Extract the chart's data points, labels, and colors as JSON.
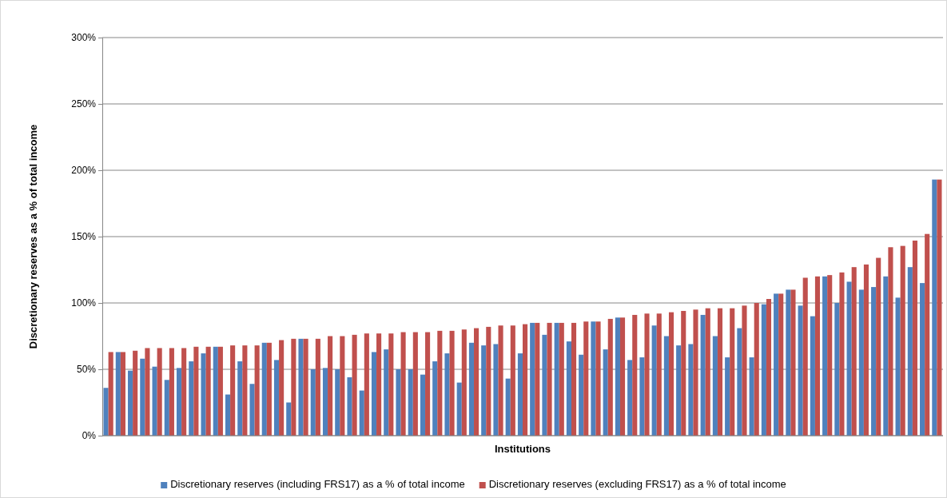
{
  "chart_data": {
    "type": "bar",
    "xlabel": "Institutions",
    "ylabel": "Discretionary reserves as a % of total income",
    "categories": [
      null,
      null,
      null,
      null,
      null,
      null,
      null,
      null,
      null,
      null,
      null,
      null,
      null,
      null,
      null,
      null,
      null,
      null,
      null,
      null,
      null,
      null,
      null,
      null,
      null,
      null,
      null,
      null,
      null,
      null,
      null,
      null,
      null,
      null,
      null,
      null,
      null,
      null,
      null,
      null,
      null,
      null,
      null,
      null,
      null,
      null,
      null,
      null,
      null,
      null,
      null,
      null,
      null,
      null,
      null,
      null,
      null,
      null,
      null,
      null,
      null,
      null,
      null,
      null,
      null,
      null,
      null,
      null,
      null
    ],
    "series": [
      {
        "name": "Discretionary reserves (including FRS17) as a % of total income",
        "color": "#4f81bd",
        "values": [
          36,
          63,
          49,
          58,
          52,
          42,
          51,
          56,
          62,
          67,
          31,
          56,
          39,
          70,
          57,
          25,
          73,
          50,
          51,
          50,
          44,
          34,
          63,
          65,
          50,
          50,
          46,
          56,
          62,
          40,
          70,
          68,
          69,
          43,
          62,
          85,
          76,
          85,
          71,
          61,
          86,
          65,
          89,
          57,
          59,
          83,
          75,
          68,
          69,
          91,
          75,
          59,
          81,
          59,
          99,
          107,
          110,
          98,
          90,
          120,
          100,
          116,
          110,
          112,
          120,
          104,
          127,
          115,
          193
        ]
      },
      {
        "name": "Discretionary reserves (excluding FRS17) as a % of total income",
        "color": "#c0504d",
        "values": [
          63,
          63,
          64,
          66,
          66,
          66,
          66,
          67,
          67,
          67,
          68,
          68,
          68,
          70,
          72,
          73,
          73,
          73,
          75,
          75,
          76,
          77,
          77,
          77,
          78,
          78,
          78,
          79,
          79,
          80,
          81,
          82,
          83,
          83,
          84,
          85,
          85,
          85,
          85,
          86,
          86,
          88,
          89,
          91,
          92,
          92,
          93,
          94,
          95,
          96,
          96,
          96,
          98,
          100,
          103,
          107,
          110,
          119,
          120,
          121,
          123,
          127,
          129,
          134,
          142,
          143,
          147,
          152,
          193
        ]
      }
    ],
    "ylim": [
      0,
      300
    ],
    "yticks": [
      {
        "value": 0,
        "label": "0%"
      },
      {
        "value": 50,
        "label": "50%"
      },
      {
        "value": 100,
        "label": "100%"
      },
      {
        "value": 150,
        "label": "150%"
      },
      {
        "value": 200,
        "label": "200%"
      },
      {
        "value": 250,
        "label": "250%"
      },
      {
        "value": 300,
        "label": "300%"
      }
    ],
    "grid": "y",
    "legend": "bottom"
  }
}
